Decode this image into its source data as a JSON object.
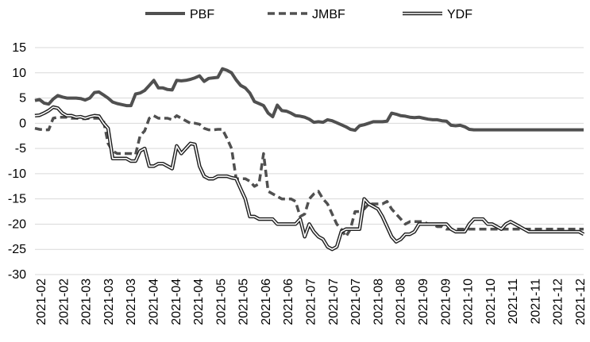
{
  "chart_data": {
    "type": "line",
    "ylim": [
      -30,
      15
    ],
    "y_ticks": [
      15,
      10,
      5,
      0,
      -5,
      -10,
      -15,
      -20,
      -25,
      -30
    ],
    "grid": "horizontal",
    "legend_position": "top",
    "x_tick_labels": [
      "2021-02",
      "2021-02",
      "2021-03",
      "2021-03",
      "2021-03",
      "2021-04",
      "2021-04",
      "2021-04",
      "2021-05",
      "2021-05",
      "2021-06",
      "2021-06",
      "2021-07",
      "2021-07",
      "2021-07",
      "2021-08",
      "2021-08",
      "2021-09",
      "2021-09",
      "2021-10",
      "2021-10",
      "2021-11",
      "2021-11",
      "2021-12",
      "2021-12"
    ],
    "x": [
      0,
      2,
      4,
      6,
      8,
      10,
      12,
      14,
      16,
      18,
      20,
      22,
      24,
      26,
      28,
      30,
      32,
      34,
      36,
      38,
      40,
      42,
      44,
      46,
      48,
      50,
      52,
      54,
      56,
      58,
      60,
      62,
      64,
      66,
      68,
      70,
      72,
      74,
      76,
      78,
      80,
      82,
      84,
      86,
      88,
      90,
      92,
      94,
      96,
      98,
      100,
      102,
      104,
      106,
      108,
      110,
      112,
      114,
      116,
      118,
      120,
      122,
      124,
      126,
      128,
      130,
      132,
      134,
      136,
      138,
      140,
      142,
      144,
      146,
      148,
      150,
      152,
      154,
      156,
      158,
      160,
      162,
      164,
      166,
      168,
      170,
      172,
      174,
      176,
      178,
      180,
      182,
      184,
      186,
      188,
      190,
      192,
      194,
      196,
      198,
      200,
      202,
      204,
      206,
      208,
      210,
      212,
      214,
      216,
      218,
      220,
      222,
      224,
      226,
      228,
      230,
      232,
      234,
      236,
      238,
      240
    ],
    "series": [
      {
        "name": "PBF",
        "style": "solid-thick",
        "color": "#505050",
        "values": [
          4.5,
          4.7,
          4,
          3.8,
          4.8,
          5.5,
          5.2,
          5,
          5,
          5,
          4.9,
          4.6,
          5,
          6.1,
          6.2,
          5.6,
          5,
          4.2,
          3.9,
          3.7,
          3.5,
          3.5,
          5.8,
          6,
          6.5,
          7.5,
          8.5,
          7,
          7,
          6.7,
          6.6,
          8.5,
          8.4,
          8.5,
          8.7,
          9,
          9.4,
          8.3,
          8.9,
          9,
          9.1,
          10.8,
          10.5,
          10,
          8.6,
          7.5,
          7,
          6,
          4.3,
          3.9,
          3.5,
          2,
          1.3,
          3.6,
          2.5,
          2.4,
          2,
          1.5,
          1.4,
          1.2,
          0.8,
          0.2,
          0.3,
          0.2,
          0.7,
          0.5,
          0.1,
          -0.3,
          -0.7,
          -1.2,
          -1.4,
          -0.5,
          -0.3,
          0,
          0.3,
          0.3,
          0.3,
          0.4,
          2,
          1.8,
          1.5,
          1.4,
          1.2,
          1.1,
          1.2,
          1,
          0.8,
          0.7,
          0.7,
          0.5,
          0.4,
          -0.4,
          -0.5,
          -0.4,
          -0.7,
          -1.2,
          -1.3,
          -1.3,
          -1.3,
          -1.3,
          -1.3,
          -1.3,
          -1.3,
          -1.3,
          -1.3,
          -1.3,
          -1.3,
          -1.3,
          -1.3,
          -1.3,
          -1.3,
          -1.3,
          -1.3,
          -1.3,
          -1.3,
          -1.3,
          -1.3,
          -1.3,
          -1.3,
          -1.3,
          -1.3
        ]
      },
      {
        "name": "JMBF",
        "style": "dashed-thick",
        "color": "#505050",
        "values": [
          -1,
          -1.2,
          -1.3,
          -1.3,
          1,
          1.2,
          1.2,
          1.2,
          1,
          1,
          0.9,
          0.9,
          1,
          1,
          1,
          0.5,
          -4,
          -5.5,
          -6,
          -6,
          -6,
          -6,
          -6.2,
          -2.5,
          -1.5,
          1,
          1.5,
          1,
          1,
          1,
          0.7,
          1.5,
          1,
          0.5,
          0,
          0,
          -0.2,
          -1,
          -1.3,
          -1.3,
          -1.2,
          -1.2,
          -3,
          -5,
          -11,
          -11,
          -11,
          -11.5,
          -12.5,
          -12,
          -6,
          -13.5,
          -14,
          -14.5,
          -15,
          -15,
          -15,
          -15.5,
          -18.5,
          -18,
          -15,
          -14,
          -13.5,
          -15,
          -16,
          -18,
          -20,
          -21,
          -22.5,
          -21,
          -17.5,
          -17.5,
          -17,
          -16,
          -16,
          -16,
          -16,
          -15.5,
          -17,
          -18,
          -19,
          -20,
          -19.5,
          -19.5,
          -19.5,
          -19.5,
          -20,
          -20,
          -20.5,
          -20.5,
          -21,
          -21,
          -21,
          -21,
          -21,
          -21,
          -21,
          -21,
          -21,
          -21,
          -21,
          -21,
          -21,
          -21,
          -21,
          -21,
          -21,
          -21,
          -21,
          -21,
          -21,
          -21,
          -21,
          -21,
          -21,
          -21,
          -21,
          -21,
          -21,
          -21,
          -21
        ]
      },
      {
        "name": "YDF",
        "style": "double-line",
        "color": "#202020",
        "values": [
          1.5,
          1.6,
          2,
          2.5,
          3.2,
          3,
          2,
          1.5,
          1.5,
          1.2,
          1.3,
          1,
          1.3,
          1.5,
          1.4,
          0,
          -1,
          -7,
          -7,
          -7,
          -7,
          -7.5,
          -7.5,
          -5.5,
          -5,
          -8.5,
          -8.5,
          -8,
          -8,
          -8.5,
          -9,
          -4.5,
          -6,
          -5,
          -4,
          -4.2,
          -8.5,
          -10.5,
          -11,
          -11,
          -10.5,
          -10.5,
          -10.5,
          -10.8,
          -11,
          -13,
          -15,
          -18.5,
          -18.5,
          -19,
          -19,
          -19,
          -19,
          -20,
          -20,
          -20,
          -20,
          -20,
          -19,
          -22.5,
          -20,
          -21.5,
          -22.5,
          -23,
          -24.5,
          -25,
          -24.5,
          -21.5,
          -21,
          -21,
          -21,
          -21,
          -15,
          -16,
          -16.5,
          -17,
          -18.5,
          -20.5,
          -22.5,
          -23.5,
          -23,
          -22,
          -22,
          -21.5,
          -20,
          -20,
          -20,
          -20,
          -20,
          -20,
          -20,
          -21,
          -21.5,
          -21.5,
          -21.5,
          -20,
          -19,
          -19,
          -19,
          -20,
          -20,
          -20.5,
          -21,
          -20,
          -19.5,
          -20,
          -20.5,
          -21,
          -21.5,
          -21.5,
          -21.5,
          -21.5,
          -21.5,
          -21.5,
          -21.5,
          -21.5,
          -21.5,
          -21.5,
          -21.5,
          -21.5,
          -22
        ]
      }
    ]
  }
}
